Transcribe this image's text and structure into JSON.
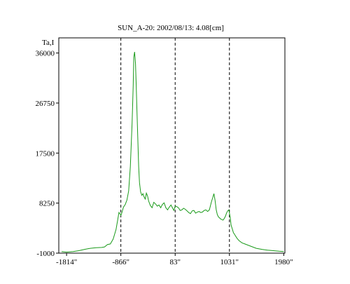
{
  "chart_data": {
    "type": "line",
    "title": "SUN_A-20: 2002/08/13: 4.08[cm]",
    "ylabel": "Ta,I",
    "xlabel": "",
    "xlim": [
      -1950,
      2000
    ],
    "ylim": [
      -1000,
      38800
    ],
    "x_ticks": [
      {
        "value": -1814,
        "label": "-1814\""
      },
      {
        "value": -866,
        "label": "-866\""
      },
      {
        "value": 83,
        "label": "83\""
      },
      {
        "value": 1031,
        "label": "1031\""
      },
      {
        "value": 1980,
        "label": "1980\""
      }
    ],
    "y_ticks": [
      {
        "value": 36000,
        "label": "36000"
      },
      {
        "value": 26750,
        "label": "26750"
      },
      {
        "value": 17500,
        "label": "17500"
      },
      {
        "value": 8250,
        "label": "8250"
      },
      {
        "value": -1000,
        "label": "-1000"
      }
    ],
    "vlines": [
      -866,
      83,
      1031
    ],
    "grid": false,
    "legend": "none",
    "colors": {
      "series": "#1a9a1a",
      "axes": "#000000",
      "vlines": "#000000"
    },
    "series": [
      {
        "x": [
          -1900,
          -1814,
          -1700,
          -1600,
          -1500,
          -1400,
          -1300,
          -1200,
          -1150,
          -1100,
          -1050,
          -1000,
          -950,
          -920,
          -900,
          -880,
          -866,
          -850,
          -820,
          -790,
          -760,
          -730,
          -700,
          -670,
          -650,
          -640,
          -625,
          -610,
          -597,
          -585,
          -570,
          -555,
          -540,
          -520,
          -500,
          -480,
          -460,
          -440,
          -420,
          -400,
          -380,
          -350,
          -320,
          -290,
          -260,
          -230,
          -200,
          -170,
          -140,
          -110,
          -80,
          -50,
          -20,
          10,
          40,
          60,
          83,
          110,
          140,
          170,
          200,
          230,
          260,
          290,
          320,
          350,
          380,
          410,
          440,
          470,
          500,
          530,
          560,
          590,
          620,
          650,
          680,
          700,
          720,
          740,
          760,
          780,
          800,
          820,
          840,
          860,
          880,
          900,
          920,
          940,
          960,
          980,
          1000,
          1020,
          1031,
          1045,
          1060,
          1080,
          1100,
          1130,
          1160,
          1200,
          1250,
          1300,
          1400,
          1500,
          1600,
          1700,
          1800,
          1900,
          1980
        ],
        "y": [
          -700,
          -800,
          -700,
          -550,
          -300,
          -100,
          0,
          50,
          150,
          600,
          700,
          1600,
          3400,
          5200,
          6500,
          6300,
          6000,
          6400,
          7500,
          8000,
          8800,
          10500,
          15000,
          23000,
          30000,
          35200,
          36200,
          34000,
          30000,
          25500,
          20500,
          15000,
          12000,
          10300,
          9700,
          10000,
          9400,
          9000,
          10100,
          9600,
          8600,
          7800,
          7400,
          8400,
          8100,
          7700,
          7900,
          7400,
          8000,
          8300,
          7400,
          7000,
          7500,
          7900,
          7300,
          6900,
          7700,
          7600,
          7400,
          6900,
          7000,
          7300,
          7100,
          6800,
          6500,
          6300,
          6800,
          6900,
          6400,
          6600,
          6700,
          6500,
          6600,
          6900,
          7000,
          6700,
          7000,
          7800,
          8600,
          9300,
          10000,
          8800,
          7000,
          6100,
          5700,
          5500,
          5300,
          5200,
          5100,
          5400,
          5800,
          6400,
          6800,
          7000,
          6400,
          5600,
          4200,
          3500,
          2800,
          2300,
          1800,
          1300,
          900,
          700,
          300,
          -100,
          -300,
          -450,
          -550,
          -650,
          -700
        ]
      }
    ]
  }
}
